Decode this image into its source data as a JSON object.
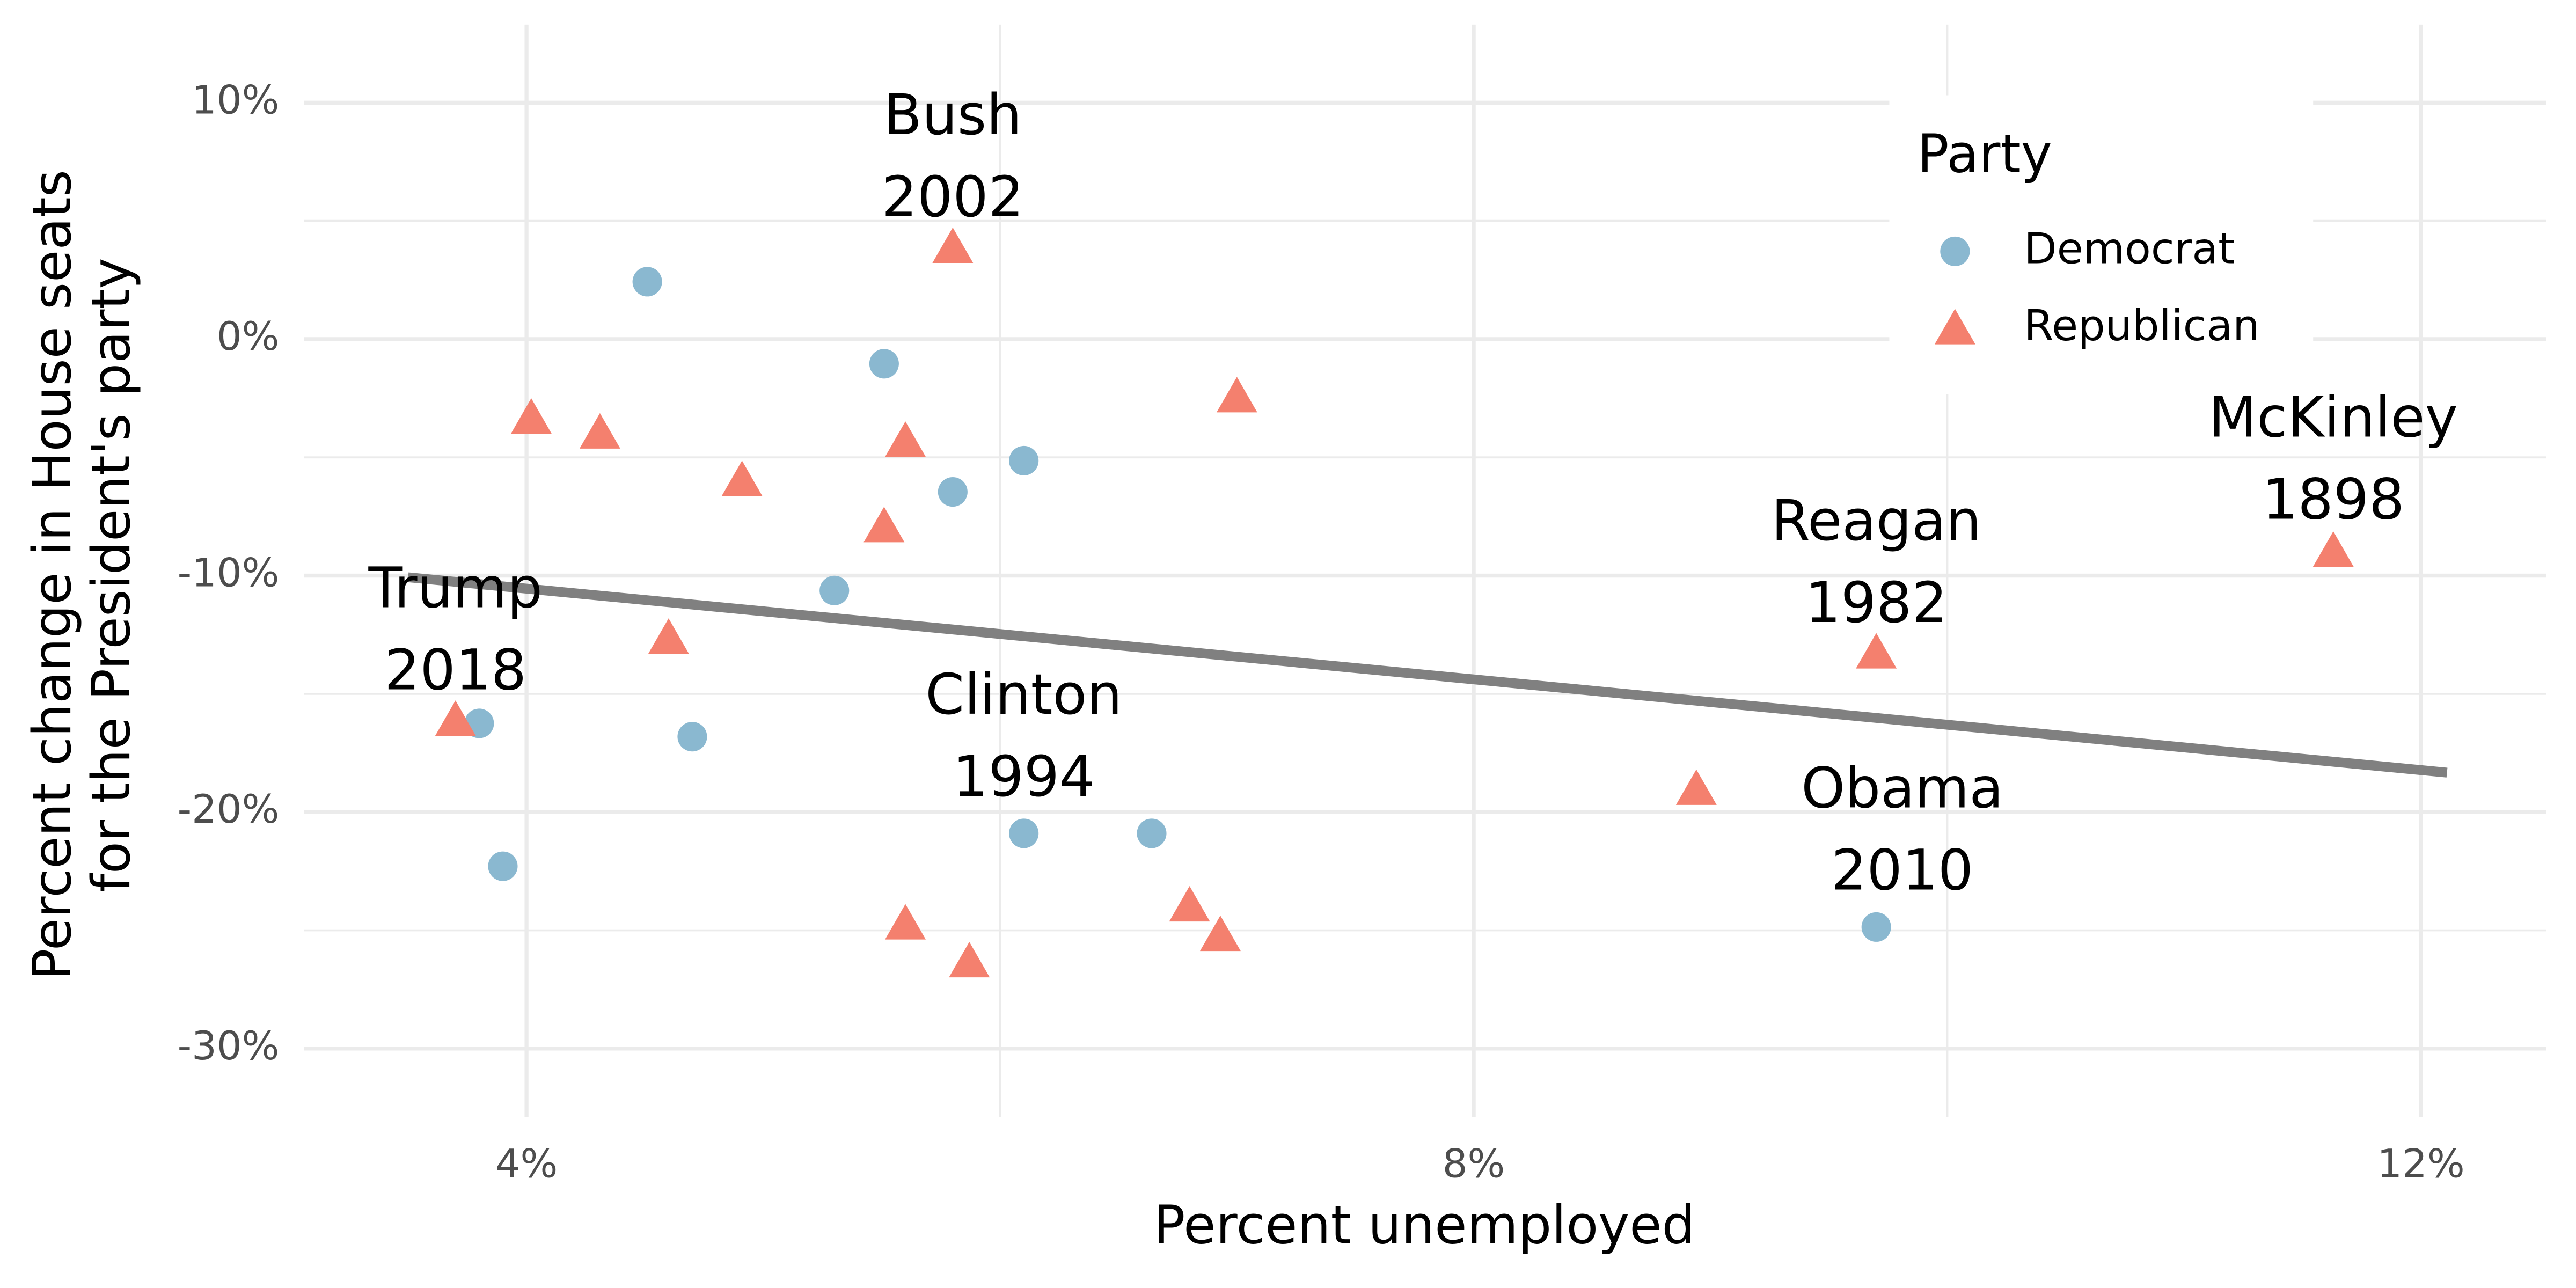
{
  "chart_data": {
    "type": "scatter",
    "x_label": "Percent unemployed",
    "y_label": [
      "Percent change in House seats",
      "for the President's party"
    ],
    "xlim": [
      3.06,
      12.53
    ],
    "ylim": [
      -32.9,
      13.3
    ],
    "xticks": [
      {
        "value": 4,
        "label": "4%"
      },
      {
        "value": 8,
        "label": "8%"
      },
      {
        "value": 12,
        "label": "12%"
      }
    ],
    "yticks": [
      {
        "value": -30,
        "label": "-30%"
      },
      {
        "value": -20,
        "label": "-20%"
      },
      {
        "value": -10,
        "label": "-10%"
      },
      {
        "value": 0,
        "label": "0%"
      },
      {
        "value": 10,
        "label": "10%"
      }
    ],
    "x_minor_ticks": [
      6,
      10
    ],
    "y_minor_ticks": [
      -25,
      -15,
      -5,
      5
    ],
    "grid": true,
    "legend_title": "Party",
    "legend_position": "top-right",
    "series": [
      {
        "name": "Democrat",
        "color": "#8ab8d0",
        "shape": "circle",
        "x": [
          4.51,
          5.51,
          5.8,
          6.1,
          5.3,
          3.8,
          4.7,
          3.9,
          6.1,
          6.64,
          9.7
        ],
        "y": [
          2.43,
          -1.04,
          -6.46,
          -5.14,
          -10.63,
          -16.25,
          -16.81,
          -22.29,
          -20.9,
          -20.9,
          -24.86
        ]
      },
      {
        "name": "Republican",
        "color": "#f4806e",
        "shape": "triangle",
        "x": [
          5.8,
          7.0,
          4.02,
          4.31,
          4.91,
          5.6,
          5.51,
          4.6,
          3.7,
          8.94,
          9.7,
          11.63,
          5.6,
          5.87,
          6.8,
          6.93
        ],
        "y": [
          3.89,
          -2.43,
          -3.33,
          -3.96,
          -5.97,
          -4.31,
          -7.92,
          -12.64,
          -16.11,
          -19.03,
          -13.26,
          -8.96,
          -24.72,
          -26.32,
          -23.96,
          -25.21
        ]
      }
    ],
    "trend": {
      "color": "#808080",
      "x": [
        3.5,
        12.11
      ],
      "y": [
        -10.07,
        -18.33
      ]
    },
    "annotations": [
      {
        "lines": [
          "Bush",
          "2002"
        ],
        "x": 5.8,
        "y": 7.57
      },
      {
        "lines": [
          "Trump",
          "2018"
        ],
        "x": 3.7,
        "y": -12.43
      },
      {
        "lines": [
          "Clinton",
          "1994"
        ],
        "x": 6.1,
        "y": -16.94
      },
      {
        "lines": [
          "Reagan",
          "1982"
        ],
        "x": 9.7,
        "y": -9.58
      },
      {
        "lines": [
          "Obama",
          "2010"
        ],
        "x": 9.81,
        "y": -20.9
      },
      {
        "lines": [
          "McKinley",
          "1898"
        ],
        "x": 11.63,
        "y": -5.21
      }
    ]
  }
}
